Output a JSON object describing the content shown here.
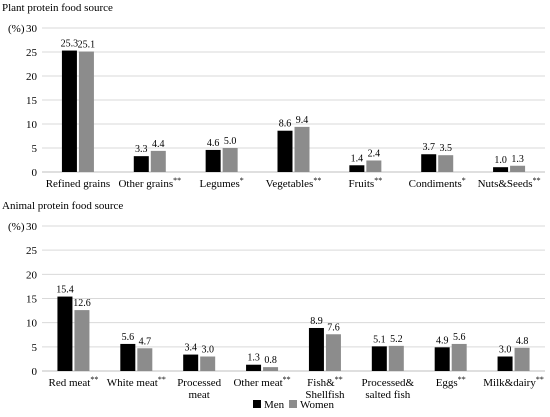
{
  "legend": [
    {
      "name": "Men",
      "color": "#000000"
    },
    {
      "name": "Women",
      "color": "#8c8c8c"
    }
  ],
  "ylabel_unit": "(%)",
  "chart_data": [
    {
      "type": "bar",
      "title": "Plant protein food source",
      "ylabel": "(%)",
      "ylim": [
        0,
        30
      ],
      "yticks": [
        0,
        5,
        10,
        15,
        20,
        25,
        30
      ],
      "grid": true,
      "categories": [
        "Refined grains",
        "Other grains",
        "Legumes",
        "Vegetables",
        "Fruits",
        "Condiments",
        "Nuts&Seeds"
      ],
      "category_marks": [
        "",
        "**",
        "*",
        "**",
        "**",
        "*",
        "**"
      ],
      "series": [
        {
          "name": "Men",
          "values": [
            25.3,
            3.3,
            4.6,
            8.6,
            1.4,
            3.7,
            1.0
          ]
        },
        {
          "name": "Women",
          "values": [
            25.1,
            4.4,
            5.0,
            9.4,
            2.4,
            3.5,
            1.3
          ]
        }
      ],
      "value_labels": {
        "Men": [
          "25.3",
          "3.3",
          "4.6",
          "8.6",
          "1.4",
          "3.7",
          "1.0"
        ],
        "Women": [
          "25.1",
          "4.4",
          "5.0",
          "9.4",
          "2.4",
          "3.5",
          "1.3"
        ]
      }
    },
    {
      "type": "bar",
      "title": "Animal protein food source",
      "ylabel": "(%)",
      "ylim": [
        0,
        30
      ],
      "yticks": [
        0,
        5,
        10,
        15,
        20,
        25,
        30
      ],
      "grid": true,
      "legend_position": "bottom",
      "categories": [
        "Red meat",
        "White meat",
        "Processed meat",
        "Other meat",
        "Fish& Shellfish",
        "Processed& salted fish",
        "Eggs",
        "Milk&dairy"
      ],
      "category_lines": [
        [
          "Red meat"
        ],
        [
          "White meat"
        ],
        [
          "Processed",
          "meat"
        ],
        [
          "Other meat"
        ],
        [
          "Fish&",
          "Shellfish"
        ],
        [
          "Processed&",
          "salted fish"
        ],
        [
          "Eggs"
        ],
        [
          "Milk&dairy"
        ]
      ],
      "category_marks": [
        "**",
        "**",
        "",
        "**",
        "**",
        "",
        "**",
        "**"
      ],
      "series": [
        {
          "name": "Men",
          "values": [
            15.4,
            5.6,
            3.4,
            1.3,
            8.9,
            5.1,
            4.9,
            3.0
          ]
        },
        {
          "name": "Women",
          "values": [
            12.6,
            4.7,
            3.0,
            0.8,
            7.6,
            5.2,
            5.6,
            4.8
          ]
        }
      ],
      "value_labels": {
        "Men": [
          "15.4",
          "5.6",
          "3.4",
          "1.3",
          "8.9",
          "5.1",
          "4.9",
          "3.0"
        ],
        "Women": [
          "12.6",
          "4.7",
          "3.0",
          "0.8",
          "7.6",
          "5.2",
          "5.6",
          "4.8"
        ]
      }
    }
  ]
}
